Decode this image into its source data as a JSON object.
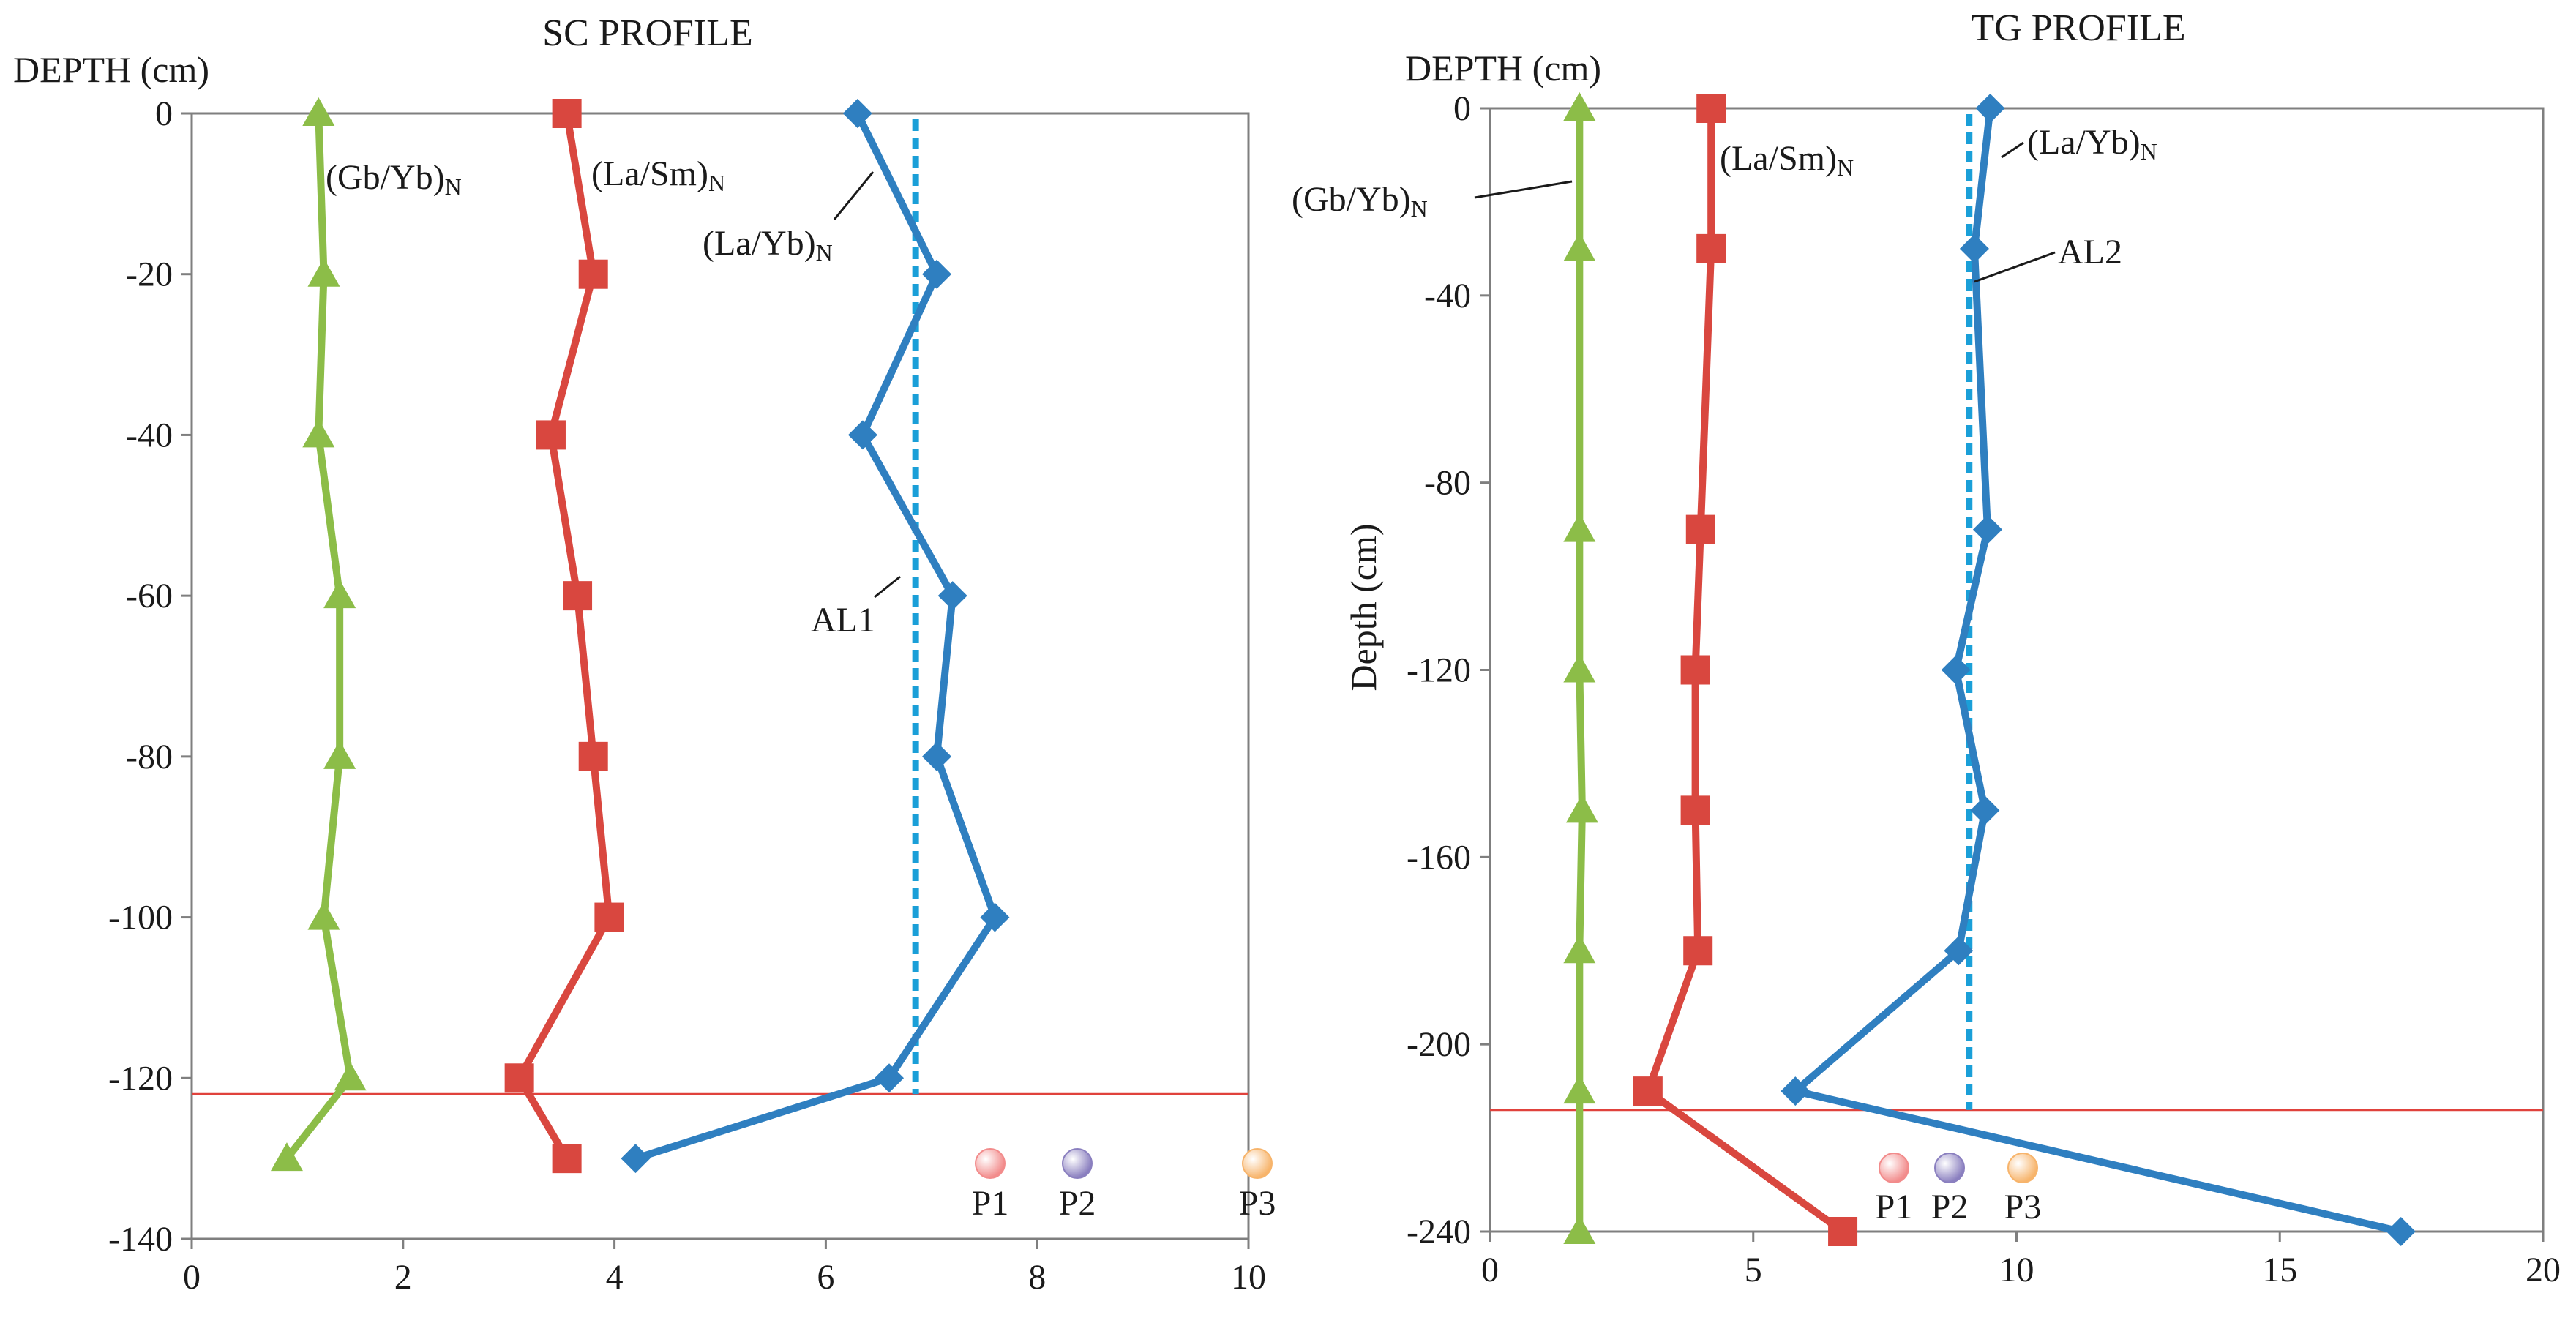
{
  "colors": {
    "gb": "#8cbd48",
    "la_sm": "#d9473f",
    "la_yb": "#2f7fc0",
    "al_line": "#1a9fd8",
    "boundary": "#e0423c",
    "axis": "#7f7f7f",
    "p1": "#f28b8b",
    "p2": "#8a7fbf",
    "p3": "#f7b46b"
  },
  "chart_data": [
    {
      "type": "line",
      "title": "SC PROFILE",
      "ylabel": "DEPTH (cm)",
      "xlabel": "",
      "xlim": [
        0,
        10
      ],
      "ylim": [
        -140,
        0
      ],
      "xticks": [
        "0",
        "2",
        "4",
        "6",
        "8",
        "10"
      ],
      "yticks": [
        "0",
        "-20",
        "-40",
        "-60",
        "-80",
        "-100",
        "-120",
        "-140"
      ],
      "series": [
        {
          "name": "(Gb/Yb)N",
          "key": "gb",
          "marker": "triangle",
          "points": [
            [
              1.2,
              0
            ],
            [
              1.25,
              -20
            ],
            [
              1.2,
              -40
            ],
            [
              1.4,
              -60
            ],
            [
              1.4,
              -80
            ],
            [
              1.25,
              -100
            ],
            [
              1.5,
              -120
            ],
            [
              0.9,
              -130
            ]
          ]
        },
        {
          "name": "(La/Sm)N",
          "key": "la_sm",
          "marker": "square",
          "points": [
            [
              3.55,
              0
            ],
            [
              3.8,
              -20
            ],
            [
              3.4,
              -40
            ],
            [
              3.65,
              -60
            ],
            [
              3.8,
              -80
            ],
            [
              3.95,
              -100
            ],
            [
              3.1,
              -120
            ],
            [
              3.55,
              -130
            ]
          ]
        },
        {
          "name": "(La/Yb)N",
          "key": "la_yb",
          "marker": "diamond",
          "points": [
            [
              6.3,
              0
            ],
            [
              7.05,
              -20
            ],
            [
              6.35,
              -40
            ],
            [
              7.2,
              -60
            ],
            [
              7.05,
              -80
            ],
            [
              7.6,
              -100
            ],
            [
              6.6,
              -120
            ],
            [
              4.2,
              -130
            ]
          ]
        }
      ],
      "al_line": {
        "label": "AL1",
        "x": 6.85
      },
      "boundary_depth": -122,
      "annotations": [
        {
          "text": "(Gb/Yb)",
          "sub": "N"
        },
        {
          "text": "(La/Sm)",
          "sub": "N"
        },
        {
          "text": "(La/Yb)",
          "sub": "N"
        },
        {
          "text": "AL1",
          "sub": ""
        }
      ],
      "legend": [
        {
          "label": "P1",
          "key": "p1"
        },
        {
          "label": "P2",
          "key": "p2"
        },
        {
          "label": "P3",
          "key": "p3"
        }
      ]
    },
    {
      "type": "line",
      "title": "TG PROFILE",
      "ylabel": "DEPTH (cm)",
      "ylabel_side": "Depth (cm)",
      "xlabel": "",
      "xlim": [
        0,
        20
      ],
      "ylim": [
        -240,
        0
      ],
      "xticks": [
        "0",
        "5",
        "10",
        "15",
        "20"
      ],
      "yticks": [
        "0",
        "-40",
        "-80",
        "-120",
        "-160",
        "-200",
        "-240"
      ],
      "series": [
        {
          "name": "(Gb/Yb)N",
          "key": "gb",
          "marker": "triangle",
          "points": [
            [
              1.7,
              0
            ],
            [
              1.7,
              -30
            ],
            [
              1.7,
              -90
            ],
            [
              1.7,
              -120
            ],
            [
              1.75,
              -150
            ],
            [
              1.7,
              -180
            ],
            [
              1.7,
              -210
            ],
            [
              1.7,
              -240
            ]
          ]
        },
        {
          "name": "(La/Sm)N",
          "key": "la_sm",
          "marker": "square",
          "points": [
            [
              4.2,
              0
            ],
            [
              4.2,
              -30
            ],
            [
              4.0,
              -90
            ],
            [
              3.9,
              -120
            ],
            [
              3.9,
              -150
            ],
            [
              3.95,
              -180
            ],
            [
              3.0,
              -210
            ],
            [
              6.7,
              -240
            ]
          ]
        },
        {
          "name": "(La/Yb)N",
          "key": "la_yb",
          "marker": "diamond",
          "points": [
            [
              9.5,
              0
            ],
            [
              9.2,
              -30
            ],
            [
              9.45,
              -90
            ],
            [
              8.85,
              -120
            ],
            [
              9.4,
              -150
            ],
            [
              8.9,
              -180
            ],
            [
              5.8,
              -210
            ],
            [
              17.3,
              -240
            ]
          ]
        }
      ],
      "al_line": {
        "label": "AL2",
        "x": 9.1
      },
      "boundary_depth": -214,
      "annotations": [
        {
          "text": "(Gb/Yb)",
          "sub": "N"
        },
        {
          "text": "(La/Sm)",
          "sub": "N"
        },
        {
          "text": "(La/Yb)",
          "sub": "N"
        },
        {
          "text": "AL2",
          "sub": ""
        }
      ],
      "legend": [
        {
          "label": "P1",
          "key": "p1"
        },
        {
          "label": "P2",
          "key": "p2"
        },
        {
          "label": "P3",
          "key": "p3"
        }
      ]
    }
  ]
}
